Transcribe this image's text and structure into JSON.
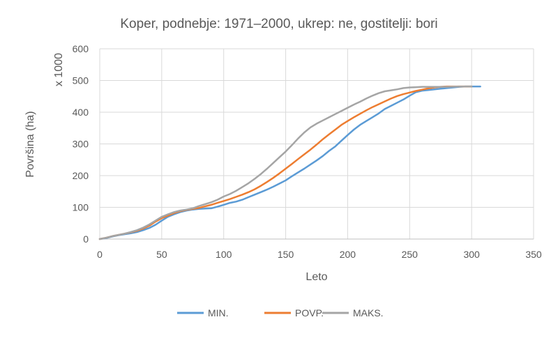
{
  "chart_data": {
    "type": "line",
    "title": "Koper, podnebje: 1971–2000, ukrep: ne, gostitelji: bori",
    "xlabel": "Leto",
    "ylabel": "Površina (ha)",
    "y_multiplier_label": "x 1000",
    "xlim": [
      0,
      350
    ],
    "ylim": [
      0,
      600
    ],
    "x_ticks": [
      0,
      50,
      100,
      150,
      200,
      250,
      300,
      350
    ],
    "y_ticks": [
      0,
      100,
      200,
      300,
      400,
      500,
      600
    ],
    "grid": true,
    "legend_position": "bottom",
    "series": [
      {
        "name": "MIN.",
        "color": "#5B9BD5",
        "points": [
          [
            0,
            0
          ],
          [
            5,
            3
          ],
          [
            10,
            8
          ],
          [
            15,
            12
          ],
          [
            20,
            15
          ],
          [
            25,
            18
          ],
          [
            30,
            22
          ],
          [
            35,
            28
          ],
          [
            40,
            35
          ],
          [
            45,
            45
          ],
          [
            50,
            58
          ],
          [
            55,
            70
          ],
          [
            60,
            78
          ],
          [
            65,
            85
          ],
          [
            70,
            90
          ],
          [
            75,
            93
          ],
          [
            80,
            95
          ],
          [
            85,
            96
          ],
          [
            90,
            97
          ],
          [
            95,
            102
          ],
          [
            100,
            108
          ],
          [
            105,
            114
          ],
          [
            110,
            118
          ],
          [
            115,
            124
          ],
          [
            120,
            132
          ],
          [
            125,
            140
          ],
          [
            130,
            148
          ],
          [
            135,
            156
          ],
          [
            140,
            165
          ],
          [
            145,
            175
          ],
          [
            150,
            185
          ],
          [
            155,
            198
          ],
          [
            160,
            210
          ],
          [
            165,
            222
          ],
          [
            170,
            235
          ],
          [
            175,
            248
          ],
          [
            180,
            262
          ],
          [
            185,
            278
          ],
          [
            190,
            292
          ],
          [
            195,
            310
          ],
          [
            200,
            328
          ],
          [
            205,
            345
          ],
          [
            210,
            360
          ],
          [
            215,
            372
          ],
          [
            220,
            384
          ],
          [
            225,
            396
          ],
          [
            230,
            410
          ],
          [
            235,
            420
          ],
          [
            240,
            430
          ],
          [
            245,
            440
          ],
          [
            250,
            452
          ],
          [
            255,
            463
          ],
          [
            260,
            468
          ],
          [
            265,
            470
          ],
          [
            270,
            472
          ],
          [
            275,
            474
          ],
          [
            280,
            476
          ],
          [
            285,
            478
          ],
          [
            290,
            480
          ],
          [
            295,
            481
          ],
          [
            300,
            481
          ],
          [
            307,
            481
          ]
        ]
      },
      {
        "name": "POVP.",
        "color": "#ED7D31",
        "points": [
          [
            0,
            0
          ],
          [
            5,
            4
          ],
          [
            10,
            9
          ],
          [
            15,
            13
          ],
          [
            20,
            17
          ],
          [
            25,
            21
          ],
          [
            30,
            26
          ],
          [
            35,
            33
          ],
          [
            40,
            42
          ],
          [
            45,
            55
          ],
          [
            50,
            66
          ],
          [
            55,
            74
          ],
          [
            60,
            82
          ],
          [
            65,
            88
          ],
          [
            70,
            92
          ],
          [
            75,
            95
          ],
          [
            80,
            98
          ],
          [
            85,
            103
          ],
          [
            90,
            108
          ],
          [
            95,
            114
          ],
          [
            100,
            120
          ],
          [
            105,
            126
          ],
          [
            110,
            133
          ],
          [
            115,
            140
          ],
          [
            120,
            148
          ],
          [
            125,
            157
          ],
          [
            130,
            168
          ],
          [
            135,
            180
          ],
          [
            140,
            193
          ],
          [
            145,
            207
          ],
          [
            150,
            222
          ],
          [
            155,
            237
          ],
          [
            160,
            252
          ],
          [
            165,
            267
          ],
          [
            170,
            282
          ],
          [
            175,
            298
          ],
          [
            180,
            315
          ],
          [
            185,
            330
          ],
          [
            190,
            345
          ],
          [
            195,
            360
          ],
          [
            200,
            372
          ],
          [
            205,
            384
          ],
          [
            210,
            395
          ],
          [
            215,
            406
          ],
          [
            220,
            416
          ],
          [
            225,
            425
          ],
          [
            230,
            434
          ],
          [
            235,
            443
          ],
          [
            240,
            451
          ],
          [
            245,
            457
          ],
          [
            250,
            462
          ],
          [
            255,
            467
          ],
          [
            260,
            471
          ],
          [
            265,
            475
          ],
          [
            270,
            478
          ],
          [
            275,
            480
          ],
          [
            280,
            481
          ],
          [
            285,
            481
          ],
          [
            290,
            481
          ],
          [
            295,
            481
          ],
          [
            300,
            481
          ]
        ]
      },
      {
        "name": "MAKS.",
        "color": "#A5A5A5",
        "points": [
          [
            0,
            0
          ],
          [
            5,
            4
          ],
          [
            10,
            9
          ],
          [
            15,
            13
          ],
          [
            20,
            17
          ],
          [
            25,
            22
          ],
          [
            30,
            28
          ],
          [
            35,
            36
          ],
          [
            40,
            46
          ],
          [
            45,
            58
          ],
          [
            50,
            70
          ],
          [
            55,
            78
          ],
          [
            60,
            85
          ],
          [
            65,
            90
          ],
          [
            70,
            93
          ],
          [
            75,
            97
          ],
          [
            80,
            104
          ],
          [
            85,
            110
          ],
          [
            90,
            116
          ],
          [
            95,
            124
          ],
          [
            100,
            134
          ],
          [
            105,
            142
          ],
          [
            110,
            152
          ],
          [
            115,
            164
          ],
          [
            120,
            176
          ],
          [
            125,
            190
          ],
          [
            130,
            205
          ],
          [
            135,
            222
          ],
          [
            140,
            240
          ],
          [
            145,
            258
          ],
          [
            150,
            276
          ],
          [
            155,
            296
          ],
          [
            160,
            317
          ],
          [
            165,
            336
          ],
          [
            170,
            352
          ],
          [
            175,
            364
          ],
          [
            180,
            374
          ],
          [
            185,
            384
          ],
          [
            190,
            394
          ],
          [
            195,
            404
          ],
          [
            200,
            414
          ],
          [
            205,
            424
          ],
          [
            210,
            433
          ],
          [
            215,
            443
          ],
          [
            220,
            452
          ],
          [
            225,
            460
          ],
          [
            230,
            466
          ],
          [
            235,
            469
          ],
          [
            240,
            472
          ],
          [
            245,
            476
          ],
          [
            250,
            478
          ],
          [
            255,
            479
          ],
          [
            260,
            480
          ],
          [
            270,
            480
          ],
          [
            280,
            480
          ],
          [
            290,
            481
          ],
          [
            300,
            481
          ]
        ]
      }
    ]
  }
}
